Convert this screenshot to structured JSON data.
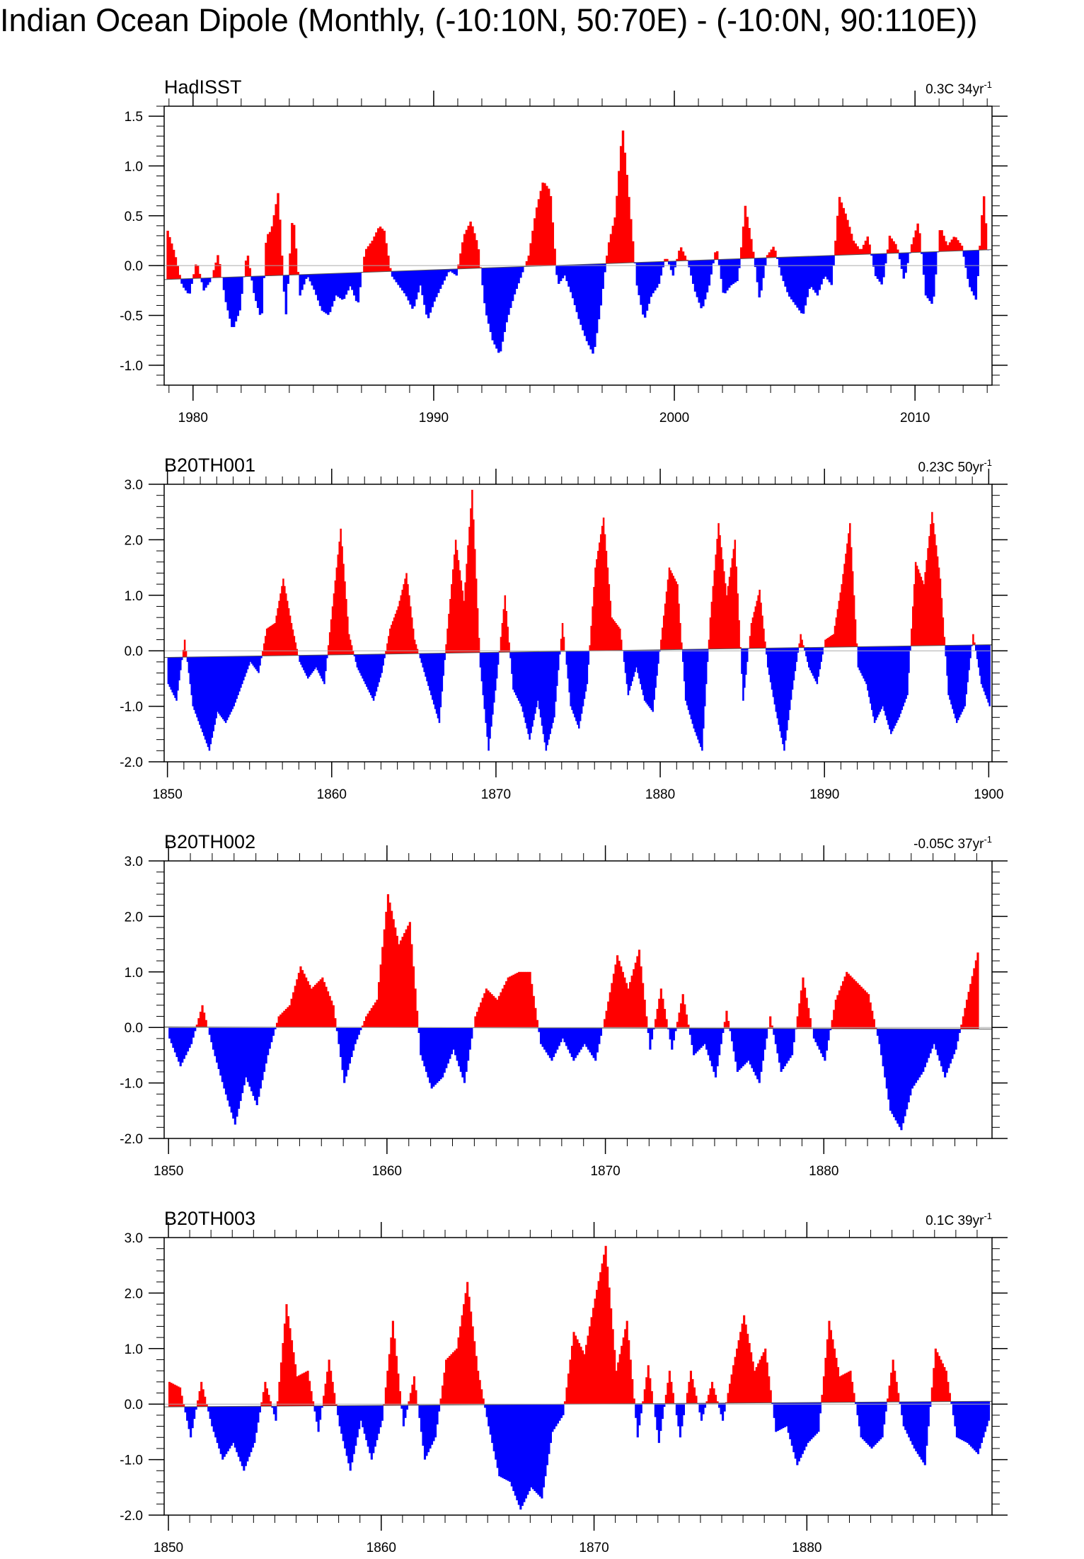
{
  "title": "Indian Ocean Dipole (Monthly, (-10:10N, 50:70E) - (-10:0N, 90:110E))",
  "colors": {
    "positive": "#ff0000",
    "negative": "#0000ff",
    "axis": "#000000",
    "zero_line": "#aaaaaa"
  },
  "chart_data": [
    {
      "type": "area",
      "title": "HadISST",
      "trend_label": {
        "value": "0.3C 34yr",
        "sup": "-1"
      },
      "xlim": [
        1978.8,
        2013.2
      ],
      "ylim": [
        -1.2,
        1.6
      ],
      "x_ticks": [
        1980,
        1990,
        2000,
        2010
      ],
      "x_tick_labels": [
        "1980",
        "1990",
        "2000",
        "2010"
      ],
      "y_ticks": [
        1.5,
        1.0,
        0.5,
        0.0,
        -0.5,
        -1.0
      ],
      "y_tick_labels": [
        "1.5",
        "1.0",
        "0.5",
        "0.0",
        "-0.5",
        "-1.0"
      ],
      "x_minor_step": 1,
      "y_minor_step": 0.1,
      "trend": [
        -0.14,
        0.16
      ],
      "x": [
        1978.9,
        1979.2,
        1979.5,
        1979.8,
        1980.1,
        1980.4,
        1980.7,
        1981.0,
        1981.3,
        1981.6,
        1981.9,
        1982.2,
        1982.5,
        1982.8,
        1983.0,
        1983.2,
        1983.5,
        1983.8,
        1984.1,
        1984.4,
        1984.7,
        1985.0,
        1985.3,
        1985.6,
        1985.9,
        1986.2,
        1986.5,
        1986.8,
        1987.1,
        1987.4,
        1987.7,
        1987.9,
        1988.2,
        1988.5,
        1988.8,
        1989.1,
        1989.4,
        1989.7,
        1990.0,
        1990.3,
        1990.6,
        1990.9,
        1991.2,
        1991.5,
        1991.8,
        1992.1,
        1992.4,
        1992.7,
        1993.0,
        1993.3,
        1993.6,
        1993.9,
        1994.2,
        1994.5,
        1994.8,
        1995.1,
        1995.4,
        1995.7,
        1996.0,
        1996.3,
        1996.6,
        1996.9,
        1997.2,
        1997.5,
        1997.8,
        1998.1,
        1998.4,
        1998.7,
        1999.0,
        1999.3,
        1999.6,
        1999.9,
        2000.2,
        2000.5,
        2000.8,
        2001.1,
        2001.4,
        2001.7,
        2002.0,
        2002.3,
        2002.6,
        2002.9,
        2003.2,
        2003.5,
        2003.8,
        2004.1,
        2004.4,
        2004.7,
        2005.0,
        2005.3,
        2005.6,
        2005.9,
        2006.2,
        2006.5,
        2006.8,
        2007.1,
        2007.4,
        2007.7,
        2008.0,
        2008.3,
        2008.6,
        2008.9,
        2009.2,
        2009.5,
        2009.8,
        2010.1,
        2010.4,
        2010.7,
        2011.0,
        2011.3,
        2011.6,
        2011.9,
        2012.2,
        2012.5,
        2012.8,
        2013.0
      ],
      "values": [
        0.35,
        0.12,
        -0.2,
        -0.3,
        0.05,
        -0.25,
        -0.15,
        0.12,
        -0.35,
        -0.65,
        -0.45,
        0.15,
        -0.3,
        -0.55,
        0.3,
        0.35,
        0.75,
        -0.55,
        0.55,
        -0.3,
        -0.1,
        -0.25,
        -0.45,
        -0.5,
        -0.3,
        -0.35,
        -0.2,
        -0.4,
        0.15,
        0.25,
        0.4,
        0.35,
        -0.1,
        -0.2,
        -0.3,
        -0.45,
        -0.2,
        -0.55,
        -0.35,
        -0.2,
        -0.05,
        -0.1,
        0.3,
        0.45,
        0.2,
        -0.45,
        -0.75,
        -0.9,
        -0.55,
        -0.3,
        -0.1,
        0.1,
        0.55,
        0.85,
        0.75,
        -0.2,
        -0.1,
        -0.3,
        -0.55,
        -0.75,
        -0.9,
        -0.4,
        0.2,
        0.5,
        1.4,
        0.6,
        -0.2,
        -0.55,
        -0.3,
        -0.2,
        0.1,
        -0.1,
        0.2,
        0.05,
        -0.25,
        -0.45,
        -0.2,
        0.2,
        -0.3,
        -0.2,
        -0.15,
        0.6,
        0.2,
        -0.35,
        0.1,
        0.2,
        -0.1,
        -0.3,
        -0.4,
        -0.5,
        -0.2,
        -0.3,
        -0.1,
        -0.2,
        0.7,
        0.5,
        0.25,
        0.15,
        0.3,
        -0.1,
        -0.2,
        0.3,
        0.2,
        -0.15,
        0.2,
        0.45,
        -0.3,
        -0.4,
        0.4,
        0.2,
        0.3,
        0.2,
        -0.2,
        -0.35,
        0.75,
        0.1
      ]
    },
    {
      "type": "area",
      "title": "B20TH001",
      "trend_label": {
        "value": "0.23C 50yr",
        "sup": "-1"
      },
      "xlim": [
        1849.8,
        1900.2
      ],
      "ylim": [
        -2.0,
        3.0
      ],
      "x_ticks": [
        1850,
        1860,
        1870,
        1880,
        1890,
        1900
      ],
      "x_tick_labels": [
        "1850",
        "1860",
        "1870",
        "1880",
        "1890",
        "1900"
      ],
      "y_ticks": [
        3.0,
        2.0,
        1.0,
        0.0,
        -1.0,
        -2.0
      ],
      "y_tick_labels": [
        "3.0",
        "2.0",
        "1.0",
        "0.0",
        "-1.0",
        "-2.0"
      ],
      "x_minor_step": 1,
      "y_minor_step": 0.2,
      "trend": [
        -0.12,
        0.11
      ],
      "x": [
        1850.0,
        1850.5,
        1851.0,
        1851.5,
        1852.0,
        1852.5,
        1853.0,
        1853.5,
        1854.0,
        1854.5,
        1855.0,
        1855.5,
        1856.0,
        1856.5,
        1857.0,
        1857.5,
        1858.0,
        1858.5,
        1859.0,
        1859.5,
        1860.0,
        1860.5,
        1861.0,
        1861.5,
        1862.0,
        1862.5,
        1863.0,
        1863.5,
        1864.0,
        1864.5,
        1865.0,
        1865.5,
        1866.0,
        1866.5,
        1867.0,
        1867.5,
        1868.0,
        1868.5,
        1869.0,
        1869.5,
        1870.0,
        1870.5,
        1871.0,
        1871.5,
        1872.0,
        1872.5,
        1873.0,
        1873.5,
        1874.0,
        1874.5,
        1875.0,
        1875.5,
        1876.0,
        1876.5,
        1877.0,
        1877.5,
        1878.0,
        1878.5,
        1879.0,
        1879.5,
        1880.0,
        1880.5,
        1881.0,
        1881.5,
        1882.0,
        1882.5,
        1883.0,
        1883.5,
        1884.0,
        1884.5,
        1885.0,
        1885.5,
        1886.0,
        1886.5,
        1887.0,
        1887.5,
        1888.0,
        1888.5,
        1889.0,
        1889.5,
        1890.0,
        1890.5,
        1891.0,
        1891.5,
        1892.0,
        1892.5,
        1893.0,
        1893.5,
        1894.0,
        1894.5,
        1895.0,
        1895.5,
        1896.0,
        1896.5,
        1897.0,
        1897.5,
        1898.0,
        1898.5,
        1899.0,
        1899.5,
        1900.0
      ],
      "values": [
        -0.6,
        -0.9,
        0.2,
        -1.0,
        -1.4,
        -1.8,
        -1.1,
        -1.3,
        -1.0,
        -0.6,
        -0.2,
        -0.4,
        0.4,
        0.5,
        1.3,
        0.5,
        -0.2,
        -0.5,
        -0.3,
        -0.6,
        0.8,
        2.2,
        0.3,
        -0.3,
        -0.6,
        -0.9,
        -0.4,
        0.4,
        0.8,
        1.4,
        0.2,
        -0.3,
        -0.8,
        -1.3,
        0.4,
        2.0,
        0.9,
        2.9,
        -0.3,
        -1.8,
        -0.5,
        1.0,
        -0.7,
        -1.0,
        -1.6,
        -0.9,
        -1.8,
        -1.2,
        0.5,
        -1.0,
        -1.4,
        -0.6,
        1.5,
        2.4,
        0.6,
        0.4,
        -0.8,
        -0.3,
        -0.9,
        -1.1,
        0.2,
        1.5,
        1.2,
        -0.9,
        -1.4,
        -1.8,
        0.6,
        2.3,
        1.0,
        2.0,
        -0.9,
        0.5,
        1.1,
        -0.3,
        -1.1,
        -1.8,
        -0.7,
        0.3,
        -0.3,
        -0.6,
        0.2,
        0.3,
        1.2,
        2.3,
        -0.3,
        -0.6,
        -1.3,
        -1.0,
        -1.5,
        -1.2,
        -0.8,
        1.6,
        1.2,
        2.5,
        1.3,
        -0.8,
        -1.3,
        -1.0,
        0.3,
        -0.6,
        -1.0
      ]
    },
    {
      "type": "area",
      "title": "B20TH002",
      "trend_label": {
        "value": "-0.05C 37yr",
        "sup": "-1"
      },
      "xlim": [
        1849.8,
        1887.7
      ],
      "ylim": [
        -2.0,
        3.0
      ],
      "x_ticks": [
        1850,
        1860,
        1870,
        1880
      ],
      "x_tick_labels": [
        "1850",
        "1860",
        "1870",
        "1880"
      ],
      "y_ticks": [
        3.0,
        2.0,
        1.0,
        0.0,
        -1.0,
        -2.0
      ],
      "y_tick_labels": [
        "3.0",
        "2.0",
        "1.0",
        "0.0",
        "-1.0",
        "-2.0"
      ],
      "x_minor_step": 1,
      "y_minor_step": 0.2,
      "trend": [
        0.01,
        -0.03
      ],
      "x": [
        1850.0,
        1850.5,
        1851.0,
        1851.5,
        1852.0,
        1852.5,
        1853.0,
        1853.5,
        1854.0,
        1854.5,
        1855.0,
        1855.5,
        1856.0,
        1856.5,
        1857.0,
        1857.5,
        1858.0,
        1858.5,
        1859.0,
        1859.5,
        1860.0,
        1860.5,
        1861.0,
        1861.5,
        1862.0,
        1862.5,
        1863.0,
        1863.5,
        1864.0,
        1864.5,
        1865.0,
        1865.5,
        1866.0,
        1866.5,
        1867.0,
        1867.5,
        1868.0,
        1868.5,
        1869.0,
        1869.5,
        1870.0,
        1870.5,
        1871.0,
        1871.5,
        1872.0,
        1872.5,
        1873.0,
        1873.5,
        1874.0,
        1874.5,
        1875.0,
        1875.5,
        1876.0,
        1876.5,
        1877.0,
        1877.5,
        1878.0,
        1878.5,
        1879.0,
        1879.5,
        1880.0,
        1880.5,
        1881.0,
        1881.5,
        1882.0,
        1882.5,
        1883.0,
        1883.5,
        1884.0,
        1884.5,
        1885.0,
        1885.5,
        1886.0,
        1886.5,
        1887.0
      ],
      "values": [
        -0.2,
        -0.7,
        -0.3,
        0.4,
        -0.4,
        -1.1,
        -1.75,
        -0.9,
        -1.4,
        -0.5,
        0.2,
        0.4,
        1.1,
        0.7,
        0.9,
        0.4,
        -1.0,
        -0.3,
        0.2,
        0.5,
        2.4,
        1.5,
        1.9,
        -0.5,
        -1.1,
        -0.9,
        -0.4,
        -1.0,
        0.2,
        0.7,
        0.5,
        0.9,
        1.0,
        1.0,
        -0.3,
        -0.6,
        -0.2,
        -0.6,
        -0.3,
        -0.6,
        0.3,
        1.3,
        0.7,
        1.4,
        -0.4,
        0.7,
        -0.4,
        0.6,
        -0.5,
        -0.3,
        -0.9,
        0.3,
        -0.8,
        -0.6,
        -1.0,
        0.2,
        -0.8,
        -0.5,
        0.9,
        -0.2,
        -0.6,
        0.5,
        1.0,
        0.8,
        0.6,
        -0.3,
        -1.5,
        -1.85,
        -1.1,
        -0.8,
        -0.3,
        -0.9,
        -0.4,
        0.5,
        1.35
      ]
    },
    {
      "type": "area",
      "title": "B20TH003",
      "trend_label": {
        "value": "0.1C 39yr",
        "sup": "-1"
      },
      "xlim": [
        1849.8,
        1888.7
      ],
      "ylim": [
        -2.0,
        3.0
      ],
      "x_ticks": [
        1850,
        1860,
        1870,
        1880
      ],
      "x_tick_labels": [
        "1850",
        "1860",
        "1870",
        "1880"
      ],
      "y_ticks": [
        3.0,
        2.0,
        1.0,
        0.0,
        -1.0,
        -2.0
      ],
      "y_tick_labels": [
        "3.0",
        "2.0",
        "1.0",
        "0.0",
        "-1.0",
        "-2.0"
      ],
      "x_minor_step": 1,
      "y_minor_step": 0.2,
      "trend": [
        -0.05,
        0.05
      ],
      "x": [
        1850.0,
        1850.5,
        1851.0,
        1851.5,
        1852.0,
        1852.5,
        1853.0,
        1853.5,
        1854.0,
        1854.5,
        1855.0,
        1855.5,
        1856.0,
        1856.5,
        1857.0,
        1857.5,
        1858.0,
        1858.5,
        1859.0,
        1859.5,
        1860.0,
        1860.5,
        1861.0,
        1861.5,
        1862.0,
        1862.5,
        1863.0,
        1863.5,
        1864.0,
        1864.5,
        1865.0,
        1865.5,
        1866.0,
        1866.5,
        1867.0,
        1867.5,
        1868.0,
        1868.5,
        1869.0,
        1869.5,
        1870.0,
        1870.5,
        1871.0,
        1871.5,
        1872.0,
        1872.5,
        1873.0,
        1873.5,
        1874.0,
        1874.5,
        1875.0,
        1875.5,
        1876.0,
        1876.5,
        1877.0,
        1877.5,
        1878.0,
        1878.5,
        1879.0,
        1879.5,
        1880.0,
        1880.5,
        1881.0,
        1881.5,
        1882.0,
        1882.5,
        1883.0,
        1883.5,
        1884.0,
        1884.5,
        1885.0,
        1885.5,
        1886.0,
        1886.5,
        1887.0,
        1887.5,
        1888.0,
        1888.5
      ],
      "values": [
        0.4,
        0.3,
        -0.6,
        0.4,
        -0.4,
        -1.0,
        -0.7,
        -1.2,
        -0.7,
        0.4,
        -0.3,
        1.8,
        0.5,
        0.6,
        -0.5,
        0.8,
        -0.4,
        -1.2,
        -0.3,
        -1.0,
        -0.3,
        1.5,
        -0.4,
        0.5,
        -1.0,
        -0.6,
        0.8,
        1.0,
        2.2,
        0.6,
        -0.4,
        -1.3,
        -1.4,
        -1.9,
        -1.5,
        -1.7,
        -0.5,
        -0.2,
        1.3,
        0.9,
        1.9,
        2.85,
        0.6,
        1.5,
        -0.6,
        0.7,
        -0.7,
        0.6,
        -0.6,
        0.6,
        -0.3,
        0.4,
        -0.3,
        0.7,
        1.6,
        0.6,
        1.0,
        -0.5,
        -0.4,
        -1.1,
        -0.7,
        -0.5,
        1.5,
        0.5,
        0.6,
        -0.6,
        -0.8,
        -0.6,
        0.8,
        -0.4,
        -0.8,
        -1.1,
        1.0,
        0.6,
        -0.6,
        -0.7,
        -0.9,
        -0.3
      ]
    }
  ]
}
